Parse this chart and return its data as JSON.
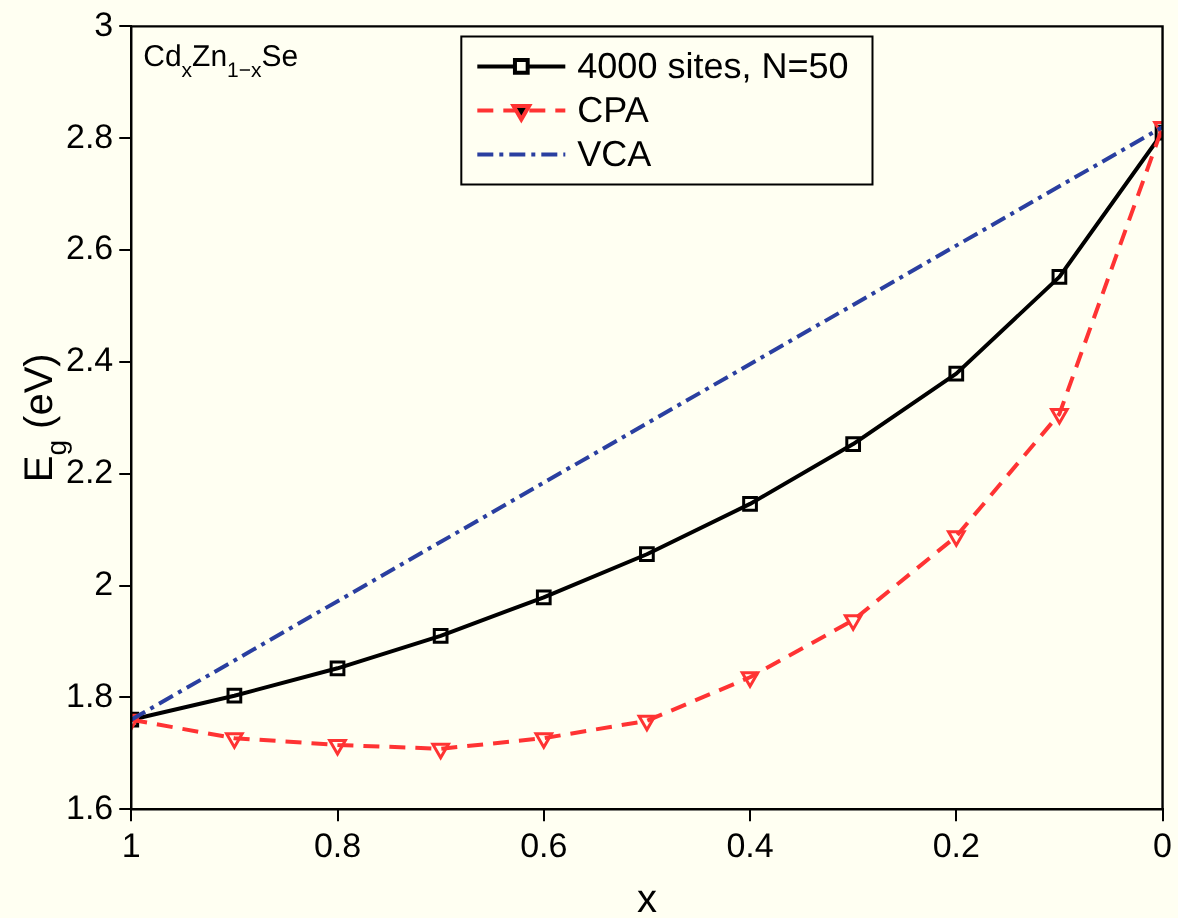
{
  "chart_data": {
    "type": "line",
    "xlabel": "x",
    "ylabel": "E$_{g}$ (eV)",
    "annotations": [
      "Cd$_{x}$Zn$_{1−x}$Se"
    ],
    "x": [
      1,
      0.9,
      0.8,
      0.7,
      0.6,
      0.5,
      0.4,
      0.3,
      0.2,
      0.1,
      0
    ],
    "series": [
      {
        "name": "4000 sites, N=50",
        "color": "#000000",
        "marker": "square",
        "line_style": "solid",
        "values": [
          1.76,
          1.803,
          1.852,
          1.91,
          1.979,
          2.056,
          2.146,
          2.253,
          2.379,
          2.552,
          2.81
        ]
      },
      {
        "name": "CPA",
        "color": "#ff3333",
        "marker": "triangle",
        "line_style": "dashed",
        "values": [
          1.76,
          1.727,
          1.715,
          1.708,
          1.727,
          1.758,
          1.836,
          1.938,
          2.088,
          2.307,
          2.82
        ]
      },
      {
        "name": "VCA",
        "color": "#2a3fa0",
        "marker": "none",
        "line_style": "dashdot",
        "x": [
          1,
          0
        ],
        "values": [
          1.76,
          2.82
        ]
      }
    ],
    "xlim": [
      1,
      0
    ],
    "xticks": [
      1,
      0.8,
      0.6,
      0.4,
      0.2,
      0
    ],
    "ylim": [
      1.6,
      3
    ],
    "yticks": [
      1.6,
      1.8,
      2,
      2.2,
      2.4,
      2.6,
      2.8,
      3
    ],
    "grid": false,
    "legend": "top"
  }
}
